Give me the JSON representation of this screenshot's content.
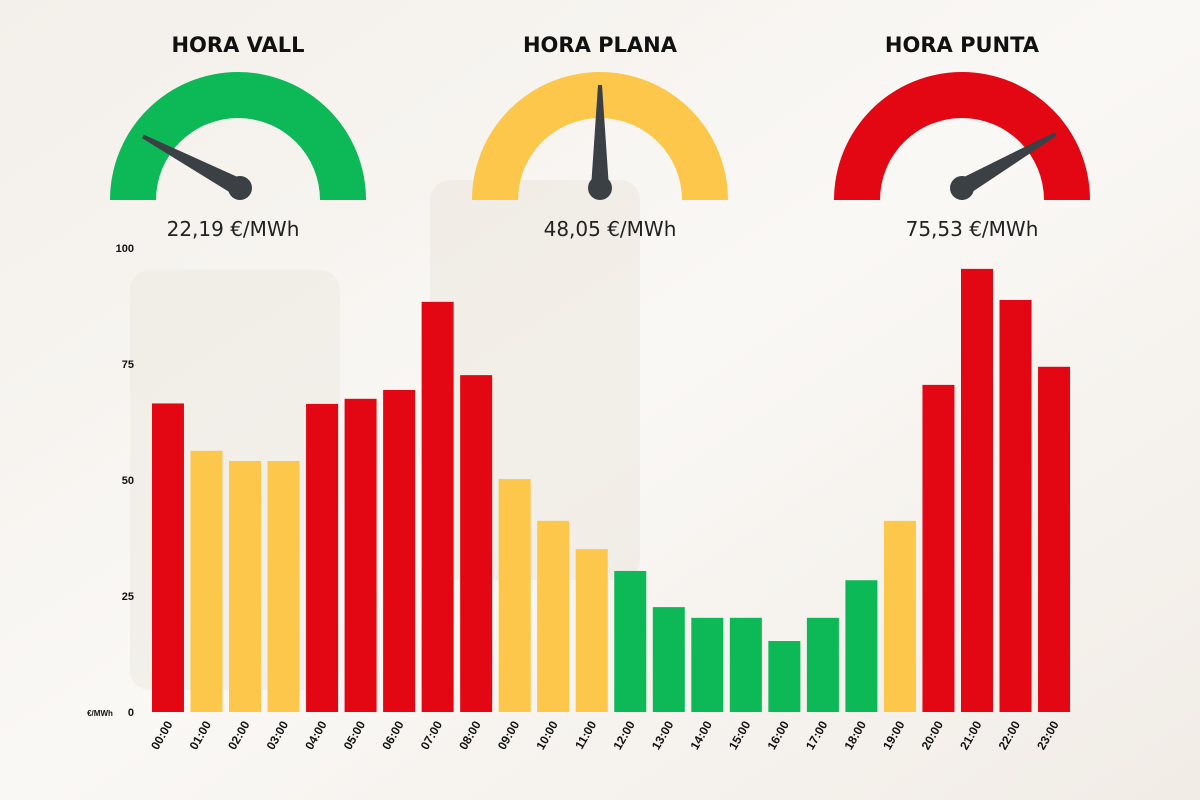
{
  "gauges": [
    {
      "title": "HORA VALL",
      "label": "22,19 €/MWh"
    },
    {
      "title": "HORA PLANA",
      "label": "48,05 €/MWh"
    },
    {
      "title": "HORA PUNTA",
      "label": "75,53 €/MWh"
    }
  ],
  "chart_data": {
    "type": "bar",
    "y_label": "€/MWh",
    "categories": [
      "00:00",
      "01:00",
      "02:00",
      "03:00",
      "04:00",
      "05:00",
      "06:00",
      "07:00",
      "08:00",
      "09:00",
      "10:00",
      "11:00",
      "12:00",
      "13:00",
      "14:00",
      "15:00",
      "16:00",
      "17:00",
      "18:00",
      "19:00",
      "20:00",
      "21:00",
      "22:00",
      "23:00"
    ],
    "values": [
      66.5,
      56.3,
      54.1,
      54.1,
      66.4,
      67.5,
      69.4,
      88.4,
      72.6,
      50.2,
      41.2,
      35.1,
      30.4,
      22.6,
      20.3,
      20.3,
      15.3,
      20.3,
      28.4,
      41.2,
      70.5,
      95.5,
      88.8,
      74.4
    ],
    "colors": [
      "#e30613",
      "#fcc74a",
      "#fcc74a",
      "#fcc74a",
      "#e30613",
      "#e30613",
      "#e30613",
      "#e30613",
      "#e30613",
      "#fcc74a",
      "#fcc74a",
      "#fcc74a",
      "#0db856",
      "#0db856",
      "#0db856",
      "#0db856",
      "#0db856",
      "#0db856",
      "#0db856",
      "#fcc74a",
      "#e30613",
      "#e30613",
      "#e30613",
      "#e30613"
    ],
    "ylim": [
      0,
      100
    ],
    "yticks": [
      0,
      25,
      50,
      75,
      100
    ],
    "grid": false
  }
}
